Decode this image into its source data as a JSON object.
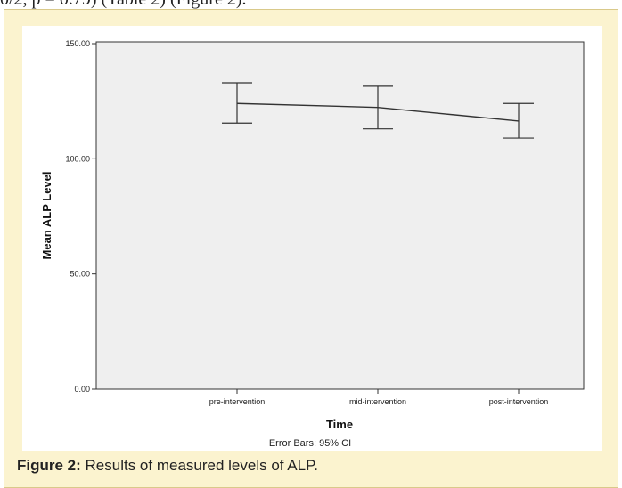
{
  "page": {
    "top_text": "0/2, p = 0.79) (Table 2) (Figure 2).",
    "caption_label": "Figure 2:",
    "caption_text": " Results of measured levels of ALP."
  },
  "colors": {
    "panel_bg": "#fbf3cf",
    "plot_bg": "#efefef",
    "line": "#333333"
  },
  "chart_data": {
    "type": "line",
    "categories": [
      "pre-intervention",
      "mid-intervention",
      "post-intervention"
    ],
    "values": [
      124.0,
      122.3,
      116.4
    ],
    "error_low": [
      115.5,
      113.0,
      109.0
    ],
    "error_high": [
      133.0,
      131.5,
      124.0
    ],
    "ylim": [
      0,
      150
    ],
    "yticks": [
      0,
      50,
      100,
      150
    ],
    "ytick_labels": [
      "0.00",
      "50.00",
      "100.00",
      "150.00"
    ],
    "xlabel": "Time",
    "ylabel": "Mean ALP Level",
    "footnote": "Error Bars: 95% CI",
    "grid": false
  }
}
